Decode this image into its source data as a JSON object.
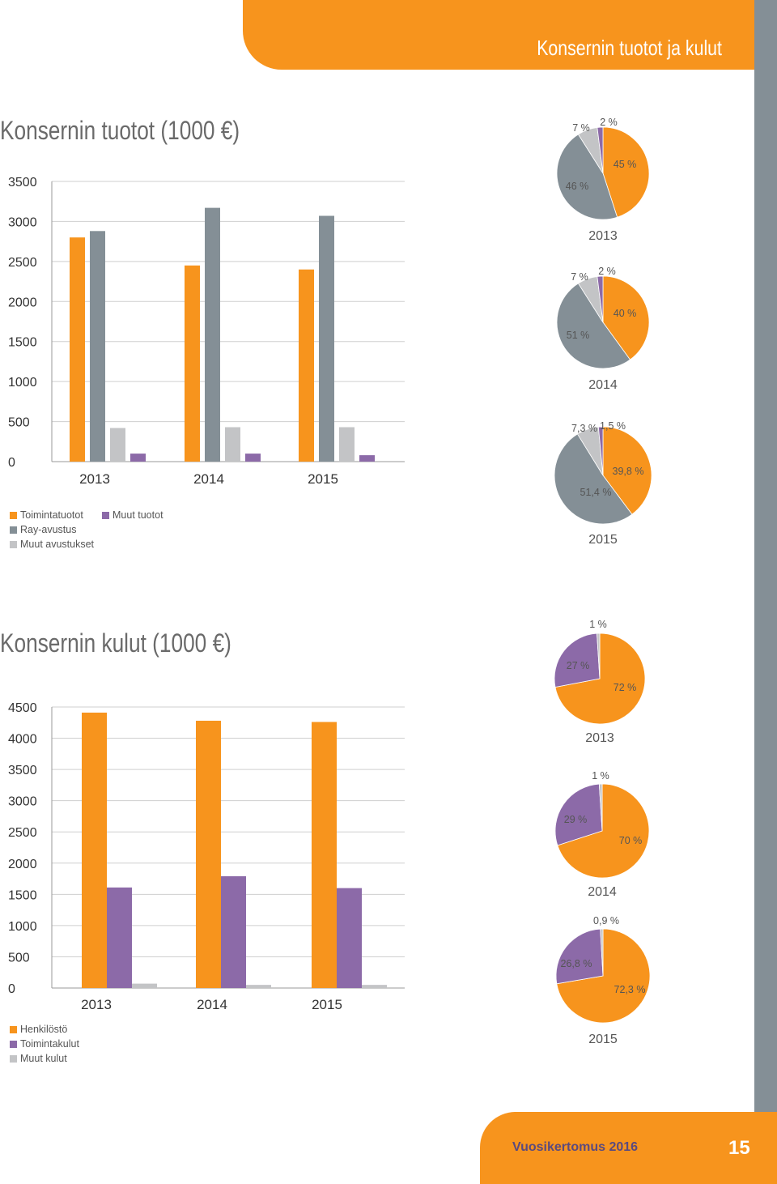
{
  "header": {
    "title": "Konsernin tuotot ja kulut"
  },
  "footer": {
    "report": "Vuosikertomus 2016",
    "page": "15"
  },
  "colors": {
    "orange": "#f7941d",
    "gray": "#848f96",
    "light_gray": "#c3c4c6",
    "purple": "#8c6aa8"
  },
  "chart_data": [
    {
      "type": "bar",
      "title": "Konsernin tuotot (1000 €)",
      "categories": [
        "2013",
        "2014",
        "2015"
      ],
      "ylim": [
        0,
        3500
      ],
      "yticks": [
        "3500",
        "3000",
        "2500",
        "2000",
        "1500",
        "1000",
        "500",
        "0"
      ],
      "series": [
        {
          "name": "Toimintatuotot",
          "color": "#f7941d",
          "values": [
            2800,
            2450,
            2400
          ]
        },
        {
          "name": "Ray-avustus",
          "color": "#848f96",
          "values": [
            2880,
            3170,
            3070
          ]
        },
        {
          "name": "Muut avustukset",
          "color": "#c3c4c6",
          "values": [
            420,
            430,
            430
          ]
        },
        {
          "name": "Muut tuotot",
          "color": "#8c6aa8",
          "values": [
            100,
            100,
            80
          ]
        }
      ],
      "legend": "bottom",
      "grid": true
    },
    {
      "type": "pie",
      "year": "2013",
      "slices": [
        {
          "label": "45 %",
          "value": 45,
          "color": "#f7941d"
        },
        {
          "label": "46 %",
          "value": 46,
          "color": "#848f96"
        },
        {
          "label": "7 %",
          "value": 7,
          "color": "#c3c4c6"
        },
        {
          "label": "2 %",
          "value": 2,
          "color": "#8c6aa8"
        }
      ]
    },
    {
      "type": "pie",
      "year": "2014",
      "slices": [
        {
          "label": "40 %",
          "value": 40,
          "color": "#f7941d"
        },
        {
          "label": "51 %",
          "value": 51,
          "color": "#848f96"
        },
        {
          "label": "7 %",
          "value": 7,
          "color": "#c3c4c6"
        },
        {
          "label": "2 %",
          "value": 2,
          "color": "#8c6aa8"
        }
      ]
    },
    {
      "type": "pie",
      "year": "2015",
      "slices": [
        {
          "label": "39,8 %",
          "value": 39.8,
          "color": "#f7941d"
        },
        {
          "label": "51,4 %",
          "value": 51.4,
          "color": "#848f96"
        },
        {
          "label": "7,3 %",
          "value": 7.3,
          "color": "#c3c4c6"
        },
        {
          "label": "1,5 %",
          "value": 1.5,
          "color": "#8c6aa8"
        }
      ]
    },
    {
      "type": "bar",
      "title": "Konsernin kulut (1000 €)",
      "categories": [
        "2013",
        "2014",
        "2015"
      ],
      "ylim": [
        0,
        4500
      ],
      "yticks": [
        "4500",
        "4000",
        "3500",
        "3000",
        "2500",
        "2000",
        "1500",
        "1000",
        "500",
        "0"
      ],
      "series": [
        {
          "name": "Henkilöstö",
          "color": "#f7941d",
          "values": [
            4410,
            4280,
            4260
          ]
        },
        {
          "name": "Toimintakulut",
          "color": "#8c6aa8",
          "values": [
            1610,
            1790,
            1600
          ]
        },
        {
          "name": "Muut kulut",
          "color": "#c3c4c6",
          "values": [
            70,
            50,
            50
          ]
        }
      ],
      "legend": "bottom",
      "grid": true
    },
    {
      "type": "pie",
      "year": "2013",
      "slices": [
        {
          "label": "72 %",
          "value": 72,
          "color": "#f7941d"
        },
        {
          "label": "27 %",
          "value": 27,
          "color": "#8c6aa8"
        },
        {
          "label": "1 %",
          "value": 1,
          "color": "#c3c4c6"
        }
      ]
    },
    {
      "type": "pie",
      "year": "2014",
      "slices": [
        {
          "label": "70 %",
          "value": 70,
          "color": "#f7941d"
        },
        {
          "label": "29 %",
          "value": 29,
          "color": "#8c6aa8"
        },
        {
          "label": "1 %",
          "value": 1,
          "color": "#c3c4c6"
        }
      ]
    },
    {
      "type": "pie",
      "year": "2015",
      "slices": [
        {
          "label": "72,3 %",
          "value": 72.3,
          "color": "#f7941d"
        },
        {
          "label": "26,8 %",
          "value": 26.8,
          "color": "#8c6aa8"
        },
        {
          "label": "0,9 %",
          "value": 0.9,
          "color": "#c3c4c6"
        }
      ]
    }
  ]
}
